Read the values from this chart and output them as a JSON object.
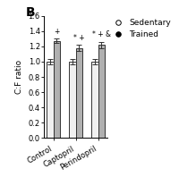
{
  "groups": [
    "Control",
    "Captopril",
    "Perindopril"
  ],
  "sedentary_means": [
    1.0,
    1.0,
    1.0
  ],
  "trained_means": [
    1.27,
    1.18,
    1.22
  ],
  "sedentary_errors": [
    0.03,
    0.04,
    0.03
  ],
  "trained_errors": [
    0.03,
    0.04,
    0.04
  ],
  "ylim": [
    0.0,
    1.6
  ],
  "yticks": [
    0.0,
    0.2,
    0.4,
    0.6,
    0.8,
    1.0,
    1.2,
    1.4,
    1.6
  ],
  "ylabel": "C:F ratio",
  "bar_width": 0.3,
  "sedentary_color": "#f0f0f0",
  "trained_color": "#b0b0b0",
  "edge_color": "#333333",
  "legend_labels": [
    "Sedentary",
    "Trained"
  ],
  "annotations_trained": [
    [
      "+"
    ],
    [
      "*",
      "+"
    ],
    [
      "*",
      "+",
      "&"
    ]
  ],
  "background_color": "#ffffff",
  "title_label": "B",
  "figure_width": 2.0,
  "figure_height": 1.98,
  "dpi": 100
}
